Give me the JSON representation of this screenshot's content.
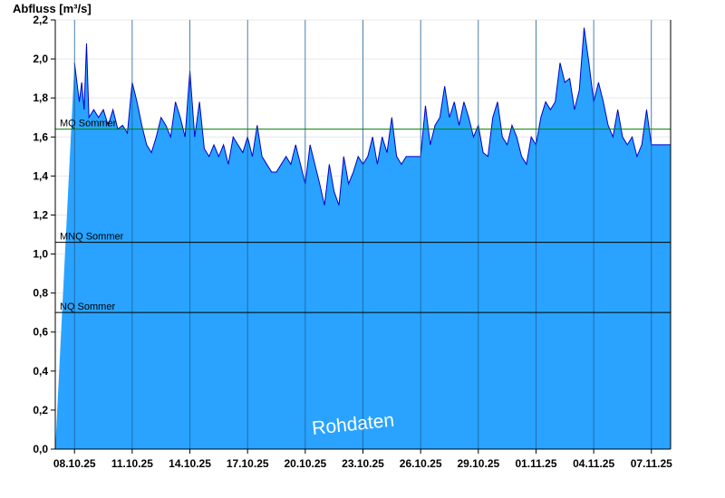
{
  "chart_data": {
    "type": "area",
    "ylabel": "Abfluss [m³/s]",
    "ylim": [
      0,
      2.2
    ],
    "yticks": [
      0,
      0.2,
      0.4,
      0.6,
      0.8,
      1.0,
      1.2,
      1.4,
      1.6,
      1.8,
      2.0,
      2.2
    ],
    "ytick_labels": [
      "0,0",
      "0,2",
      "0,4",
      "0,6",
      "0,8",
      "1,0",
      "1,2",
      "1,4",
      "1,6",
      "1,8",
      "2,0",
      "2,2"
    ],
    "xlim": [
      "2025-10-07",
      "2025-11-08"
    ],
    "xticks": [
      "2025-10-08",
      "2025-10-11",
      "2025-10-14",
      "2025-10-17",
      "2025-10-20",
      "2025-10-23",
      "2025-10-26",
      "2025-10-29",
      "2025-11-01",
      "2025-11-04",
      "2025-11-07"
    ],
    "xtick_labels": [
      "08.10.25",
      "11.10.25",
      "14.10.25",
      "17.10.25",
      "20.10.25",
      "23.10.25",
      "26.10.25",
      "29.10.25",
      "01.11.25",
      "04.11.25",
      "07.11.25"
    ],
    "vertical_grid": true,
    "horizontal_grid": true,
    "series": [
      {
        "color": "#29a3ff",
        "line_color": "#0000cc",
        "points": [
          [
            "2025-10-08 00:00",
            1.98
          ],
          [
            "2025-10-08 03:00",
            1.88
          ],
          [
            "2025-10-08 06:00",
            1.78
          ],
          [
            "2025-10-08 09:00",
            1.88
          ],
          [
            "2025-10-08 12:00",
            1.74
          ],
          [
            "2025-10-08 15:00",
            2.08
          ],
          [
            "2025-10-08 18:00",
            1.7
          ],
          [
            "2025-10-09 00:00",
            1.74
          ],
          [
            "2025-10-09 06:00",
            1.7
          ],
          [
            "2025-10-09 12:00",
            1.74
          ],
          [
            "2025-10-09 18:00",
            1.66
          ],
          [
            "2025-10-10 00:00",
            1.74
          ],
          [
            "2025-10-10 06:00",
            1.64
          ],
          [
            "2025-10-10 12:00",
            1.66
          ],
          [
            "2025-10-10 18:00",
            1.62
          ],
          [
            "2025-10-11 00:00",
            1.88
          ],
          [
            "2025-10-11 06:00",
            1.78
          ],
          [
            "2025-10-11 12:00",
            1.66
          ],
          [
            "2025-10-11 18:00",
            1.56
          ],
          [
            "2025-10-12 00:00",
            1.52
          ],
          [
            "2025-10-12 06:00",
            1.6
          ],
          [
            "2025-10-12 12:00",
            1.7
          ],
          [
            "2025-10-12 18:00",
            1.66
          ],
          [
            "2025-10-13 00:00",
            1.6
          ],
          [
            "2025-10-13 06:00",
            1.78
          ],
          [
            "2025-10-13 12:00",
            1.7
          ],
          [
            "2025-10-13 18:00",
            1.6
          ],
          [
            "2025-10-14 00:00",
            1.94
          ],
          [
            "2025-10-14 06:00",
            1.6
          ],
          [
            "2025-10-14 12:00",
            1.78
          ],
          [
            "2025-10-14 18:00",
            1.54
          ],
          [
            "2025-10-15 00:00",
            1.5
          ],
          [
            "2025-10-15 06:00",
            1.56
          ],
          [
            "2025-10-15 12:00",
            1.5
          ],
          [
            "2025-10-15 18:00",
            1.56
          ],
          [
            "2025-10-16 00:00",
            1.46
          ],
          [
            "2025-10-16 06:00",
            1.6
          ],
          [
            "2025-10-16 12:00",
            1.56
          ],
          [
            "2025-10-16 18:00",
            1.52
          ],
          [
            "2025-10-17 00:00",
            1.6
          ],
          [
            "2025-10-17 06:00",
            1.5
          ],
          [
            "2025-10-17 12:00",
            1.66
          ],
          [
            "2025-10-17 18:00",
            1.5
          ],
          [
            "2025-10-18 00:00",
            1.46
          ],
          [
            "2025-10-18 06:00",
            1.42
          ],
          [
            "2025-10-18 12:00",
            1.42
          ],
          [
            "2025-10-18 18:00",
            1.46
          ],
          [
            "2025-10-19 00:00",
            1.5
          ],
          [
            "2025-10-19 06:00",
            1.46
          ],
          [
            "2025-10-19 12:00",
            1.56
          ],
          [
            "2025-10-19 18:00",
            1.46
          ],
          [
            "2025-10-20 00:00",
            1.36
          ],
          [
            "2025-10-20 06:00",
            1.56
          ],
          [
            "2025-10-20 12:00",
            1.46
          ],
          [
            "2025-10-20 18:00",
            1.36
          ],
          [
            "2025-10-21 00:00",
            1.25
          ],
          [
            "2025-10-21 06:00",
            1.46
          ],
          [
            "2025-10-21 12:00",
            1.32
          ],
          [
            "2025-10-21 18:00",
            1.25
          ],
          [
            "2025-10-22 00:00",
            1.5
          ],
          [
            "2025-10-22 06:00",
            1.36
          ],
          [
            "2025-10-22 12:00",
            1.42
          ],
          [
            "2025-10-22 18:00",
            1.5
          ],
          [
            "2025-10-23 00:00",
            1.46
          ],
          [
            "2025-10-23 06:00",
            1.5
          ],
          [
            "2025-10-23 12:00",
            1.6
          ],
          [
            "2025-10-23 18:00",
            1.46
          ],
          [
            "2025-10-24 00:00",
            1.6
          ],
          [
            "2025-10-24 06:00",
            1.52
          ],
          [
            "2025-10-24 12:00",
            1.7
          ],
          [
            "2025-10-24 18:00",
            1.5
          ],
          [
            "2025-10-25 00:00",
            1.46
          ],
          [
            "2025-10-25 06:00",
            1.5
          ],
          [
            "2025-10-25 12:00",
            1.5
          ],
          [
            "2025-10-25 18:00",
            1.5
          ],
          [
            "2025-10-26 00:00",
            1.5
          ],
          [
            "2025-10-26 06:00",
            1.76
          ],
          [
            "2025-10-26 12:00",
            1.56
          ],
          [
            "2025-10-26 18:00",
            1.66
          ],
          [
            "2025-10-27 00:00",
            1.7
          ],
          [
            "2025-10-27 06:00",
            1.86
          ],
          [
            "2025-10-27 12:00",
            1.7
          ],
          [
            "2025-10-27 18:00",
            1.78
          ],
          [
            "2025-10-28 00:00",
            1.66
          ],
          [
            "2025-10-28 06:00",
            1.78
          ],
          [
            "2025-10-28 12:00",
            1.7
          ],
          [
            "2025-10-28 18:00",
            1.6
          ],
          [
            "2025-10-29 00:00",
            1.66
          ],
          [
            "2025-10-29 06:00",
            1.52
          ],
          [
            "2025-10-29 12:00",
            1.5
          ],
          [
            "2025-10-29 18:00",
            1.7
          ],
          [
            "2025-10-30 00:00",
            1.78
          ],
          [
            "2025-10-30 06:00",
            1.6
          ],
          [
            "2025-10-30 12:00",
            1.56
          ],
          [
            "2025-10-30 18:00",
            1.66
          ],
          [
            "2025-10-31 00:00",
            1.6
          ],
          [
            "2025-10-31 06:00",
            1.5
          ],
          [
            "2025-10-31 12:00",
            1.46
          ],
          [
            "2025-10-31 18:00",
            1.6
          ],
          [
            "2025-11-01 00:00",
            1.56
          ],
          [
            "2025-11-01 06:00",
            1.7
          ],
          [
            "2025-11-01 12:00",
            1.78
          ],
          [
            "2025-11-01 18:00",
            1.74
          ],
          [
            "2025-11-02 00:00",
            1.78
          ],
          [
            "2025-11-02 06:00",
            1.98
          ],
          [
            "2025-11-02 12:00",
            1.88
          ],
          [
            "2025-11-02 18:00",
            1.9
          ],
          [
            "2025-11-03 00:00",
            1.74
          ],
          [
            "2025-11-03 06:00",
            1.84
          ],
          [
            "2025-11-03 12:00",
            2.16
          ],
          [
            "2025-11-03 18:00",
            1.98
          ],
          [
            "2025-11-04 00:00",
            1.78
          ],
          [
            "2025-11-04 06:00",
            1.88
          ],
          [
            "2025-11-04 12:00",
            1.78
          ],
          [
            "2025-11-04 18:00",
            1.66
          ],
          [
            "2025-11-05 00:00",
            1.6
          ],
          [
            "2025-11-05 06:00",
            1.74
          ],
          [
            "2025-11-05 12:00",
            1.6
          ],
          [
            "2025-11-05 18:00",
            1.56
          ],
          [
            "2025-11-06 00:00",
            1.6
          ],
          [
            "2025-11-06 06:00",
            1.5
          ],
          [
            "2025-11-06 12:00",
            1.56
          ],
          [
            "2025-11-06 18:00",
            1.74
          ],
          [
            "2025-11-07 00:00",
            1.56
          ]
        ]
      }
    ],
    "reference_lines": [
      {
        "label": "MQ Sommer",
        "value": 1.64,
        "color": "#008000"
      },
      {
        "label": "MNQ Sommer",
        "value": 1.06,
        "color": "#000000"
      },
      {
        "label": "NQ Sommer",
        "value": 0.7,
        "color": "#000000"
      }
    ],
    "watermark": "Rohdaten"
  }
}
